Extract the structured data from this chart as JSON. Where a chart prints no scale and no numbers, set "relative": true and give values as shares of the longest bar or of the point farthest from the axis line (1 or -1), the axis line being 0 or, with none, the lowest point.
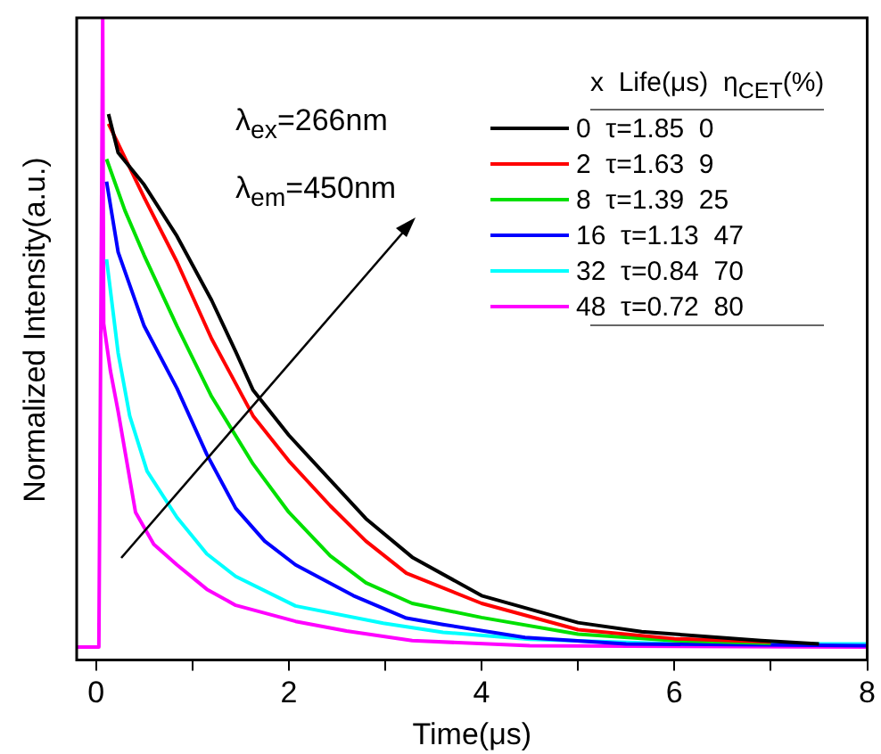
{
  "chart_data": {
    "type": "line",
    "xlabel": "Time(μs)",
    "ylabel": "Normalized Intensity(a.u.)",
    "relative": true,
    "xlim": [
      -0.2,
      8
    ],
    "xticks": [
      0,
      {
        "value": 1,
        "label": null
      },
      2,
      {
        "value": 3,
        "label": null
      },
      4,
      {
        "value": 5,
        "label": null
      },
      6,
      {
        "value": 7,
        "label": null
      },
      8
    ],
    "grid": false,
    "marker": "none",
    "line_style": "solid",
    "legend": "top right",
    "legend_title": "x  Life(μs)  η$_{CET}$(%)",
    "annotations": [
      "λ$_{ex}$=266nm",
      "λ$_{em}$=450nm"
    ],
    "series": [
      {
        "name": "0  τ=1.85  0",
        "color": "#000000",
        "x": [
          0.13,
          0.23,
          0.5,
          0.84,
          1.2,
          1.45,
          1.63,
          2,
          2.43,
          2.8,
          3.28,
          4,
          5,
          5.66,
          6.9,
          7.5
        ],
        "values": [
          0.85,
          0.79,
          0.74,
          0.66,
          0.56,
          0.48,
          0.42,
          0.35,
          0.28,
          0.22,
          0.16,
          0.1,
          0.058,
          0.044,
          0.03,
          0.025
        ]
      },
      {
        "name": "2  τ=1.63  9",
        "color": "#ff0000",
        "x": [
          0.13,
          0.5,
          0.84,
          1.2,
          1.63,
          2,
          2.43,
          2.8,
          3.22,
          4,
          5,
          6,
          7
        ],
        "values": [
          0.835,
          0.72,
          0.62,
          0.5,
          0.38,
          0.31,
          0.24,
          0.185,
          0.135,
          0.088,
          0.047,
          0.033,
          0.028
        ]
      },
      {
        "name": "8  τ=1.39  25",
        "color": "#00e000",
        "x": [
          0.11,
          0.3,
          0.5,
          0.84,
          1.2,
          1.63,
          2,
          2.43,
          2.8,
          3.28,
          4,
          5,
          6,
          7
        ],
        "values": [
          0.78,
          0.7,
          0.63,
          0.52,
          0.41,
          0.305,
          0.23,
          0.162,
          0.12,
          0.088,
          0.066,
          0.04,
          0.03,
          0.026
        ]
      },
      {
        "name": "16  τ=1.13  47",
        "color": "#0000ff",
        "x": [
          0.11,
          0.23,
          0.5,
          0.84,
          1.15,
          1.45,
          1.75,
          2.07,
          2.67,
          3.22,
          3.6,
          4.45,
          5.5,
          8
        ],
        "values": [
          0.745,
          0.635,
          0.52,
          0.423,
          0.32,
          0.236,
          0.185,
          0.148,
          0.1,
          0.065,
          0.055,
          0.035,
          0.025,
          0.022
        ]
      },
      {
        "name": "32  τ=0.84  70",
        "color": "#00ffff",
        "x": [
          0.11,
          0.23,
          0.35,
          0.53,
          0.84,
          1.15,
          1.45,
          2.07,
          2.98,
          3.6,
          4.5,
          6,
          8
        ],
        "values": [
          0.624,
          0.478,
          0.38,
          0.294,
          0.222,
          0.165,
          0.13,
          0.084,
          0.057,
          0.043,
          0.032,
          0.025,
          0.025
        ]
      },
      {
        "name": "48  τ=0.72  80",
        "color": "#ff00ff",
        "x": [
          -0.2,
          0.03,
          0.07,
          0.08,
          0.15,
          0.23,
          0.41,
          0.6,
          0.84,
          1.15,
          1.45,
          2.07,
          2.6,
          3.28,
          4.5,
          8
        ],
        "values": [
          0.02,
          0.02,
          1,
          0.524,
          0.45,
          0.387,
          0.23,
          0.18,
          0.148,
          0.11,
          0.085,
          0.06,
          0.045,
          0.03,
          0.022,
          0.02
        ]
      }
    ]
  }
}
